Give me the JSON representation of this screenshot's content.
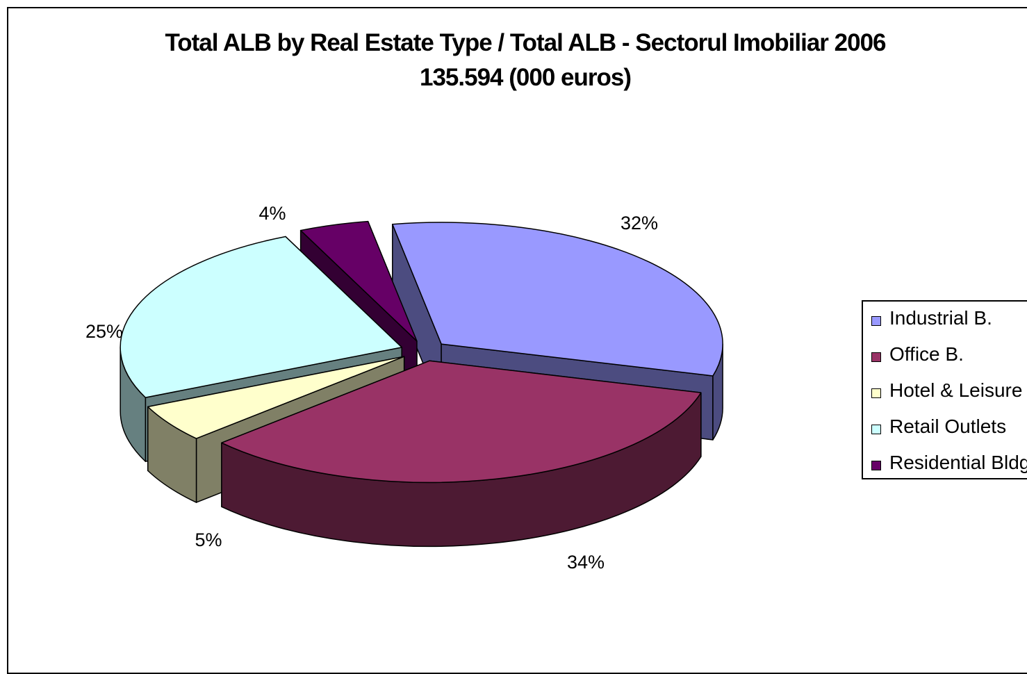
{
  "chart_data": {
    "type": "pie",
    "title": "Total ALB by Real Estate Type / Total ALB - Sectorul Imobiliar 2006",
    "subtitle": "135.594 (000 euros)",
    "slices": [
      {
        "name": "Industrial B.",
        "value": 32,
        "label": "32%",
        "color": "#9999ff",
        "side_color": "#4c4c80"
      },
      {
        "name": "Office B.",
        "value": 34,
        "label": "34%",
        "color": "#993366",
        "side_color": "#4d1a33"
      },
      {
        "name": "Hotel & Leisure",
        "value": 5,
        "label": "5%",
        "color": "#ffffcc",
        "side_color": "#808066"
      },
      {
        "name": "Retail Outlets",
        "value": 25,
        "label": "25%",
        "color": "#ccffff",
        "side_color": "#668080"
      },
      {
        "name": "Residential Bldg.",
        "value": 4,
        "label": "4%",
        "color": "#660066",
        "side_color": "#330033"
      }
    ],
    "legend_position": "right"
  }
}
